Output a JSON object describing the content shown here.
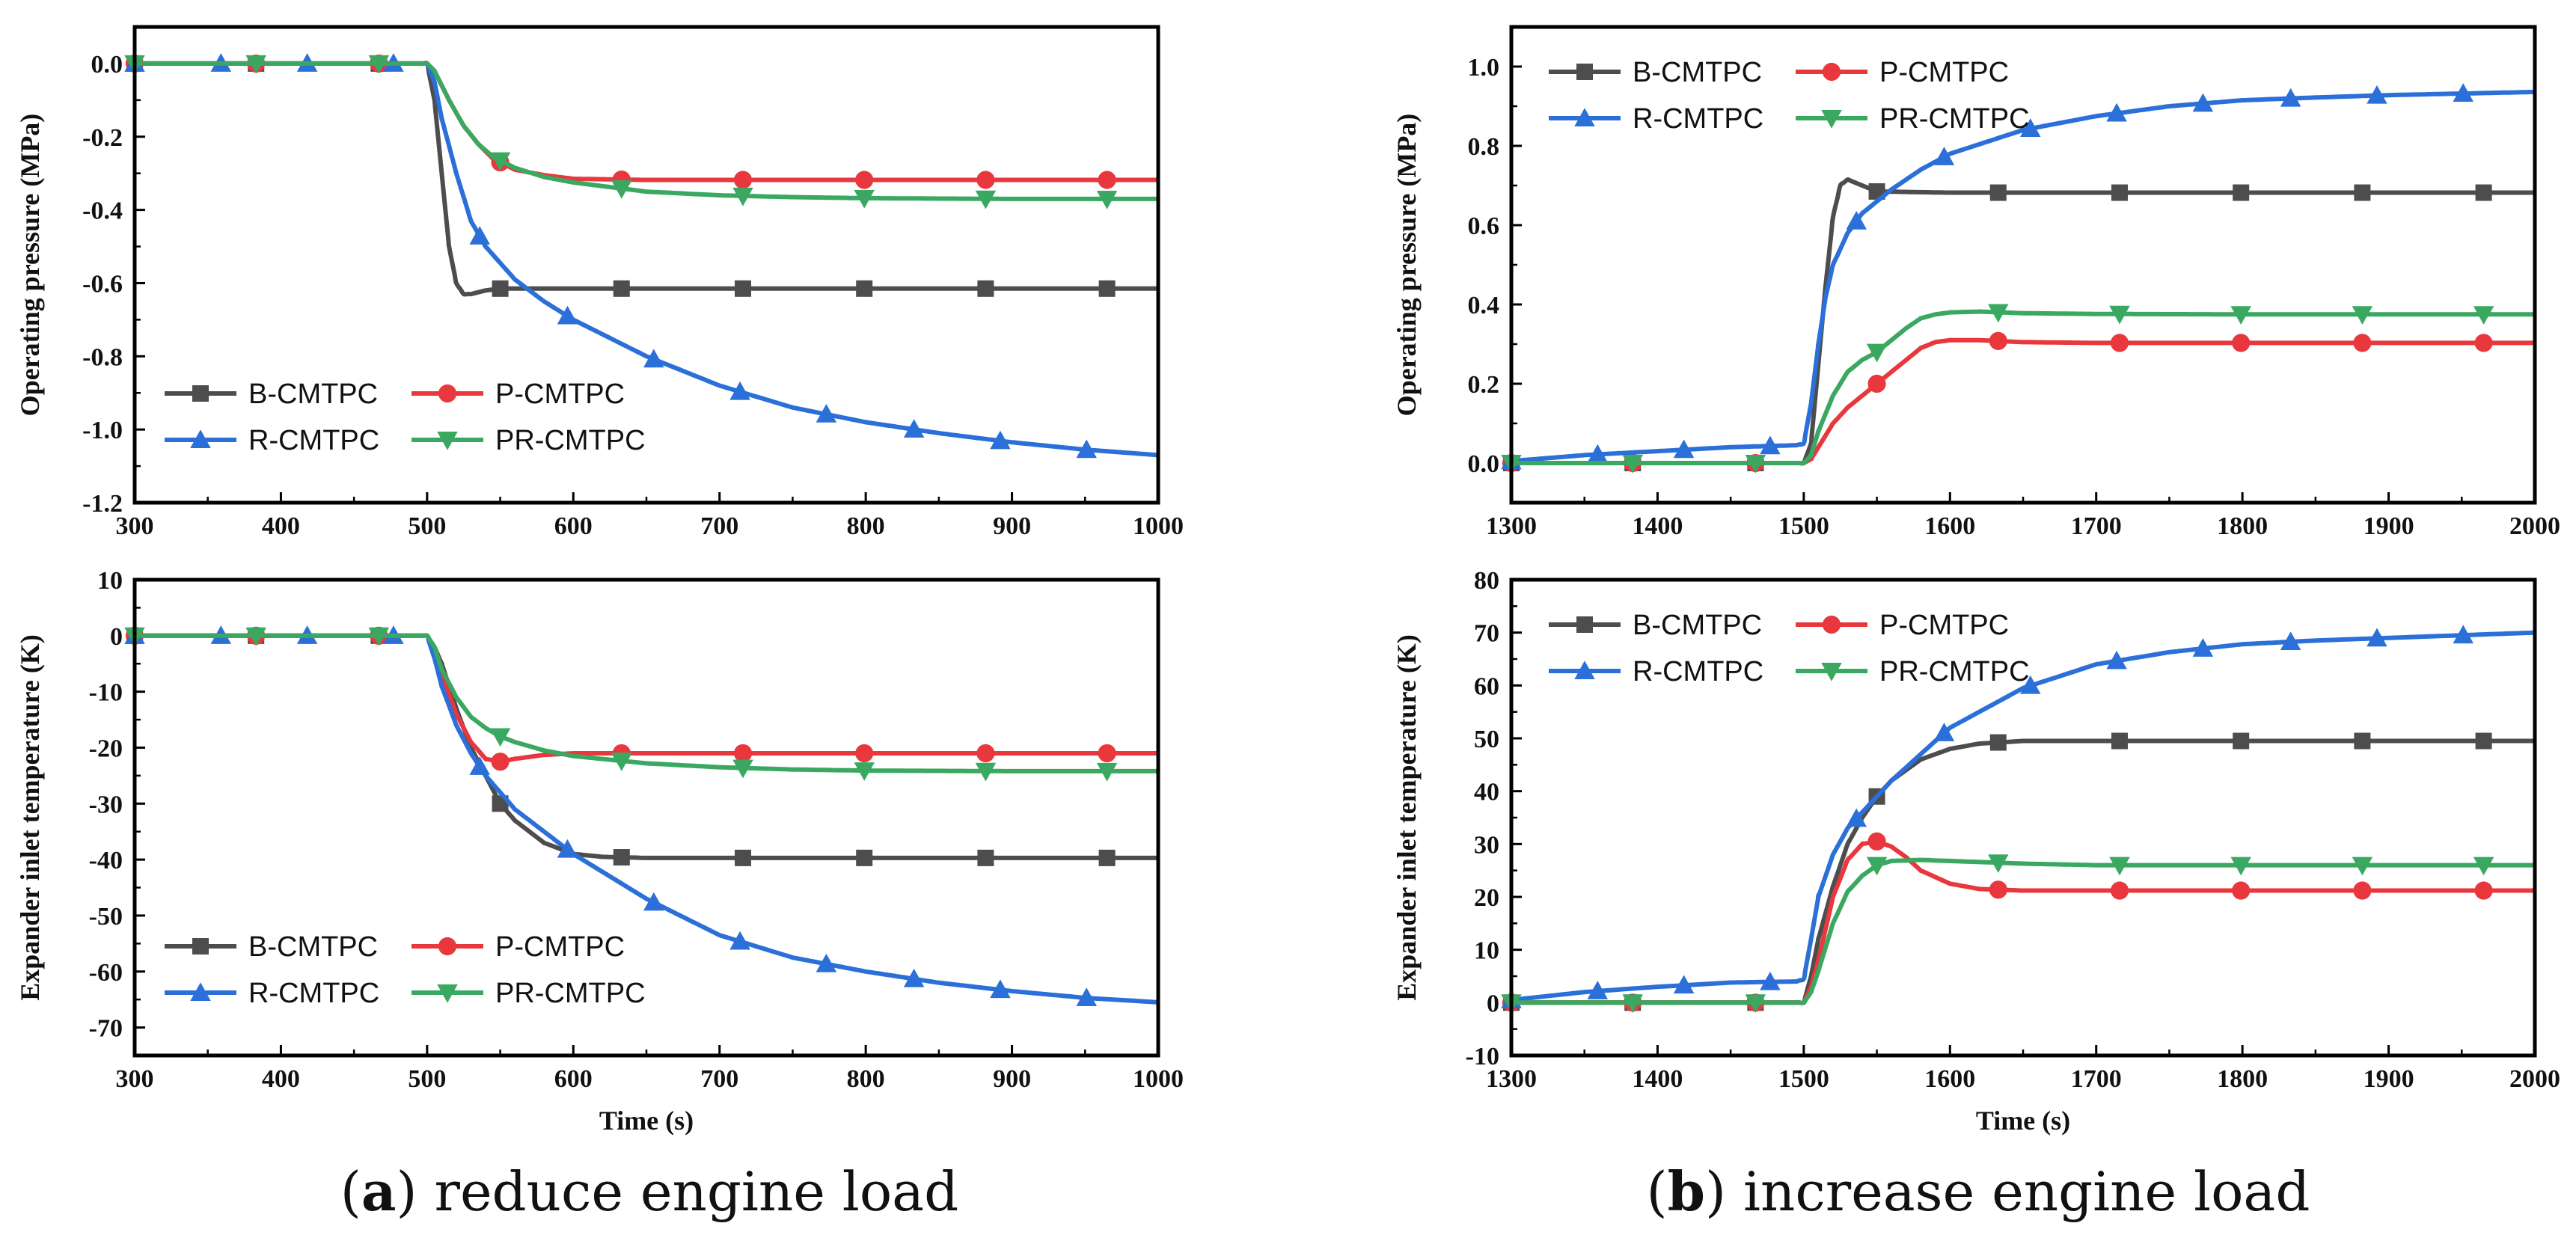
{
  "captions": {
    "a_label": "a",
    "a_text": " reduce engine load",
    "b_label": "b",
    "b_text": " increase engine load"
  },
  "colors": {
    "B-CMTPC": "#4d4d4d",
    "P-CMTPC": "#e8383d",
    "R-CMTPC": "#2b6fd8",
    "PR-CMTPC": "#3aa860"
  },
  "markers": {
    "B-CMTPC": "square",
    "P-CMTPC": "circle",
    "R-CMTPC": "triangle-up",
    "PR-CMTPC": "triangle-down"
  },
  "chart_data": [
    {
      "id": "a-pressure",
      "type": "line",
      "xlabel": "",
      "ylabel": "Operating pressure (MPa)",
      "xlim": [
        300,
        1000
      ],
      "ylim": [
        -1.2,
        0.1
      ],
      "xticks": [
        300,
        400,
        500,
        600,
        700,
        800,
        900,
        1000
      ],
      "yticks": [
        -1.2,
        -1.0,
        -0.8,
        -0.6,
        -0.4,
        -0.2,
        0.0
      ],
      "ytick_labels": [
        "-1.2",
        "-1.0",
        "-0.8",
        "-0.6",
        "-0.4",
        "-0.2",
        "0.0"
      ],
      "legend": {
        "position": "bottom-left",
        "entries": [
          "B-CMTPC",
          "P-CMTPC",
          "R-CMTPC",
          "PR-CMTPC"
        ]
      },
      "series": [
        {
          "name": "B-CMTPC",
          "x": [
            300,
            380,
            460,
            500,
            505,
            510,
            515,
            520,
            525,
            530,
            540,
            550,
            600,
            650,
            700,
            800,
            900,
            1000
          ],
          "y": [
            0,
            0,
            0,
            0,
            -0.1,
            -0.3,
            -0.5,
            -0.6,
            -0.63,
            -0.63,
            -0.62,
            -0.615,
            -0.615,
            -0.615,
            -0.615,
            -0.615,
            -0.615,
            -0.615
          ],
          "marker_x": [
            300,
            383,
            467,
            550,
            633,
            716,
            799,
            882,
            965
          ]
        },
        {
          "name": "P-CMTPC",
          "x": [
            300,
            380,
            460,
            500,
            505,
            515,
            525,
            535,
            545,
            560,
            580,
            600,
            650,
            700,
            800,
            900,
            1000
          ],
          "y": [
            0,
            0,
            0,
            0,
            -0.02,
            -0.1,
            -0.17,
            -0.22,
            -0.26,
            -0.29,
            -0.305,
            -0.315,
            -0.318,
            -0.318,
            -0.318,
            -0.318,
            -0.318
          ],
          "marker_x": [
            300,
            383,
            467,
            550,
            633,
            716,
            799,
            882,
            965
          ]
        },
        {
          "name": "R-CMTPC",
          "x": [
            300,
            360,
            420,
            480,
            500,
            505,
            510,
            520,
            530,
            540,
            560,
            580,
            600,
            650,
            700,
            750,
            800,
            850,
            900,
            950,
            1000
          ],
          "y": [
            0,
            0,
            0,
            0,
            0,
            -0.05,
            -0.15,
            -0.3,
            -0.43,
            -0.5,
            -0.59,
            -0.65,
            -0.7,
            -0.8,
            -0.88,
            -0.94,
            -0.98,
            -1.01,
            -1.035,
            -1.055,
            -1.07
          ],
          "marker_x": [
            300,
            359,
            418,
            477,
            536,
            596,
            655,
            714,
            773,
            833,
            892,
            951
          ]
        },
        {
          "name": "PR-CMTPC",
          "x": [
            300,
            380,
            460,
            500,
            505,
            515,
            525,
            535,
            545,
            560,
            580,
            600,
            650,
            700,
            750,
            800,
            900,
            1000
          ],
          "y": [
            0,
            0,
            0,
            0,
            -0.02,
            -0.1,
            -0.17,
            -0.22,
            -0.255,
            -0.285,
            -0.31,
            -0.325,
            -0.35,
            -0.36,
            -0.365,
            -0.368,
            -0.37,
            -0.37
          ],
          "marker_x": [
            300,
            383,
            467,
            550,
            633,
            716,
            799,
            882,
            965
          ]
        }
      ]
    },
    {
      "id": "b-pressure",
      "type": "line",
      "xlabel": "",
      "ylabel": "Operating pressure (MPa)",
      "xlim": [
        1300,
        2000
      ],
      "ylim": [
        -0.1,
        1.1
      ],
      "xticks": [
        1300,
        1400,
        1500,
        1600,
        1700,
        1800,
        1900,
        2000
      ],
      "yticks": [
        0.0,
        0.2,
        0.4,
        0.6,
        0.8,
        1.0
      ],
      "ytick_labels": [
        "0.0",
        "0.2",
        "0.4",
        "0.6",
        "0.8",
        "1.0"
      ],
      "legend": {
        "position": "top-left",
        "entries": [
          "B-CMTPC",
          "P-CMTPC",
          "R-CMTPC",
          "PR-CMTPC"
        ]
      },
      "series": [
        {
          "name": "B-CMTPC",
          "x": [
            1300,
            1400,
            1495,
            1500,
            1505,
            1510,
            1515,
            1520,
            1525,
            1530,
            1540,
            1550,
            1600,
            1700,
            1800,
            1900,
            2000
          ],
          "y": [
            0,
            0,
            0,
            0,
            0.05,
            0.25,
            0.45,
            0.62,
            0.7,
            0.715,
            0.7,
            0.685,
            0.682,
            0.682,
            0.682,
            0.682,
            0.682
          ],
          "marker_x": [
            1300,
            1383,
            1467,
            1550,
            1633,
            1716,
            1799,
            1882,
            1965
          ]
        },
        {
          "name": "P-CMTPC",
          "x": [
            1300,
            1400,
            1495,
            1500,
            1505,
            1510,
            1520,
            1530,
            1540,
            1550,
            1560,
            1570,
            1580,
            1590,
            1600,
            1620,
            1650,
            1700,
            1800,
            1900,
            2000
          ],
          "y": [
            0,
            0,
            0,
            0,
            0.01,
            0.04,
            0.1,
            0.14,
            0.17,
            0.2,
            0.23,
            0.26,
            0.29,
            0.305,
            0.31,
            0.31,
            0.305,
            0.303,
            0.303,
            0.303,
            0.303
          ],
          "marker_x": [
            1300,
            1383,
            1467,
            1550,
            1633,
            1716,
            1799,
            1882,
            1965
          ]
        },
        {
          "name": "R-CMTPC",
          "x": [
            1300,
            1350,
            1400,
            1450,
            1495,
            1500,
            1505,
            1510,
            1515,
            1520,
            1530,
            1540,
            1560,
            1580,
            1600,
            1650,
            1700,
            1750,
            1800,
            1850,
            1900,
            1950,
            2000
          ],
          "y": [
            0.005,
            0.02,
            0.03,
            0.04,
            0.045,
            0.05,
            0.15,
            0.3,
            0.42,
            0.5,
            0.58,
            0.63,
            0.69,
            0.74,
            0.78,
            0.84,
            0.875,
            0.9,
            0.915,
            0.922,
            0.928,
            0.932,
            0.936
          ],
          "marker_x": [
            1300,
            1359,
            1418,
            1477,
            1536,
            1596,
            1655,
            1714,
            1773,
            1833,
            1892,
            1951
          ]
        },
        {
          "name": "PR-CMTPC",
          "x": [
            1300,
            1400,
            1495,
            1500,
            1505,
            1510,
            1520,
            1530,
            1540,
            1550,
            1560,
            1570,
            1580,
            1590,
            1600,
            1620,
            1650,
            1700,
            1800,
            1900,
            2000
          ],
          "y": [
            0,
            0,
            0,
            0,
            0.02,
            0.08,
            0.17,
            0.23,
            0.26,
            0.28,
            0.31,
            0.34,
            0.365,
            0.375,
            0.38,
            0.382,
            0.378,
            0.376,
            0.375,
            0.375,
            0.375
          ],
          "marker_x": [
            1300,
            1383,
            1467,
            1550,
            1633,
            1716,
            1799,
            1882,
            1965
          ]
        }
      ]
    },
    {
      "id": "a-temperature",
      "type": "line",
      "xlabel": "Time (s)",
      "ylabel": "Expander inlet temperature (K)",
      "xlim": [
        300,
        1000
      ],
      "ylim": [
        -75,
        10
      ],
      "xticks": [
        300,
        400,
        500,
        600,
        700,
        800,
        900,
        1000
      ],
      "yticks": [
        -70,
        -60,
        -50,
        -40,
        -30,
        -20,
        -10,
        0,
        10
      ],
      "ytick_labels": [
        "-70",
        "-60",
        "-50",
        "-40",
        "-30",
        "-20",
        "-10",
        "0",
        "10"
      ],
      "legend": {
        "position": "bottom-left",
        "entries": [
          "B-CMTPC",
          "P-CMTPC",
          "R-CMTPC",
          "PR-CMTPC"
        ]
      },
      "series": [
        {
          "name": "B-CMTPC",
          "x": [
            300,
            380,
            460,
            500,
            505,
            510,
            520,
            530,
            540,
            550,
            560,
            580,
            600,
            620,
            650,
            700,
            800,
            900,
            1000
          ],
          "y": [
            0,
            0,
            0,
            0,
            -2,
            -5,
            -13,
            -20,
            -25,
            -30,
            -33,
            -37,
            -39,
            -39.5,
            -39.7,
            -39.7,
            -39.7,
            -39.7,
            -39.7
          ],
          "marker_x": [
            300,
            383,
            467,
            550,
            633,
            716,
            799,
            882,
            965
          ]
        },
        {
          "name": "P-CMTPC",
          "x": [
            300,
            380,
            460,
            500,
            505,
            510,
            520,
            530,
            540,
            550,
            560,
            580,
            600,
            630,
            700,
            800,
            900,
            1000
          ],
          "y": [
            0,
            0,
            0,
            0,
            -3,
            -7,
            -14,
            -19,
            -22,
            -22.5,
            -22,
            -21.3,
            -21,
            -21,
            -21,
            -21,
            -21,
            -21
          ],
          "marker_x": [
            300,
            383,
            467,
            550,
            633,
            716,
            799,
            882,
            965
          ]
        },
        {
          "name": "R-CMTPC",
          "x": [
            300,
            360,
            420,
            480,
            500,
            505,
            510,
            520,
            530,
            540,
            560,
            580,
            600,
            650,
            700,
            750,
            800,
            850,
            900,
            950,
            1000
          ],
          "y": [
            0,
            0,
            0,
            0,
            0,
            -4,
            -9,
            -16,
            -21,
            -25,
            -31,
            -35,
            -39,
            -47,
            -53.5,
            -57.5,
            -60,
            -62,
            -63.5,
            -64.7,
            -65.5
          ],
          "marker_x": [
            300,
            359,
            418,
            477,
            536,
            596,
            655,
            714,
            773,
            833,
            892,
            951
          ]
        },
        {
          "name": "PR-CMTPC",
          "x": [
            300,
            380,
            460,
            500,
            505,
            510,
            520,
            530,
            540,
            550,
            560,
            580,
            600,
            650,
            700,
            750,
            800,
            900,
            1000
          ],
          "y": [
            0,
            0,
            0,
            0,
            -2,
            -6,
            -11,
            -14.5,
            -16.5,
            -18,
            -19,
            -20.5,
            -21.5,
            -22.8,
            -23.5,
            -23.9,
            -24.1,
            -24.2,
            -24.2
          ],
          "marker_x": [
            300,
            383,
            467,
            550,
            633,
            716,
            799,
            882,
            965
          ]
        }
      ]
    },
    {
      "id": "b-temperature",
      "type": "line",
      "xlabel": "Time (s)",
      "ylabel": "Expander inlet temperature (K)",
      "xlim": [
        1300,
        2000
      ],
      "ylim": [
        -10,
        80
      ],
      "xticks": [
        1300,
        1400,
        1500,
        1600,
        1700,
        1800,
        1900,
        2000
      ],
      "yticks": [
        -10,
        0,
        10,
        20,
        30,
        40,
        50,
        60,
        70,
        80
      ],
      "ytick_labels": [
        "-10",
        "0",
        "10",
        "20",
        "30",
        "40",
        "50",
        "60",
        "70",
        "80"
      ],
      "legend": {
        "position": "top-left",
        "entries": [
          "B-CMTPC",
          "P-CMTPC",
          "R-CMTPC",
          "PR-CMTPC"
        ]
      },
      "series": [
        {
          "name": "B-CMTPC",
          "x": [
            1300,
            1400,
            1495,
            1500,
            1505,
            1510,
            1520,
            1530,
            1540,
            1550,
            1560,
            1580,
            1600,
            1620,
            1650,
            1700,
            1800,
            1900,
            2000
          ],
          "y": [
            0,
            0,
            0,
            0,
            5,
            12,
            22,
            30,
            35,
            39,
            42,
            46,
            48,
            49,
            49.5,
            49.5,
            49.5,
            49.5,
            49.5
          ],
          "marker_x": [
            1300,
            1383,
            1467,
            1550,
            1633,
            1716,
            1799,
            1882,
            1965
          ]
        },
        {
          "name": "P-CMTPC",
          "x": [
            1300,
            1400,
            1495,
            1500,
            1505,
            1510,
            1520,
            1530,
            1540,
            1550,
            1560,
            1570,
            1580,
            1600,
            1620,
            1650,
            1700,
            1800,
            1900,
            2000
          ],
          "y": [
            0,
            0,
            0,
            0,
            3,
            8,
            20,
            27,
            30,
            30.5,
            29.5,
            27.5,
            25,
            22.5,
            21.5,
            21.2,
            21.2,
            21.2,
            21.2,
            21.2
          ],
          "marker_x": [
            1300,
            1383,
            1467,
            1550,
            1633,
            1716,
            1799,
            1882,
            1965
          ]
        },
        {
          "name": "R-CMTPC",
          "x": [
            1300,
            1350,
            1400,
            1450,
            1495,
            1500,
            1505,
            1510,
            1520,
            1530,
            1540,
            1560,
            1580,
            1600,
            1650,
            1700,
            1750,
            1800,
            1850,
            1900,
            1950,
            2000
          ],
          "y": [
            0.5,
            2,
            3,
            3.8,
            4,
            4.5,
            12,
            20,
            28,
            33,
            36,
            42,
            47,
            52,
            59.5,
            64,
            66.3,
            67.8,
            68.5,
            69,
            69.5,
            70
          ],
          "marker_x": [
            1300,
            1359,
            1418,
            1477,
            1536,
            1596,
            1655,
            1714,
            1773,
            1833,
            1892,
            1951
          ]
        },
        {
          "name": "PR-CMTPC",
          "x": [
            1300,
            1400,
            1495,
            1500,
            1505,
            1510,
            1520,
            1530,
            1540,
            1550,
            1560,
            1580,
            1600,
            1650,
            1700,
            1800,
            1900,
            2000
          ],
          "y": [
            0,
            0,
            0,
            0,
            2,
            6,
            15,
            21,
            24,
            26,
            26.8,
            27,
            26.8,
            26.3,
            26,
            26,
            26,
            26
          ],
          "marker_x": [
            1300,
            1383,
            1467,
            1550,
            1633,
            1716,
            1799,
            1882,
            1965
          ]
        }
      ]
    }
  ]
}
